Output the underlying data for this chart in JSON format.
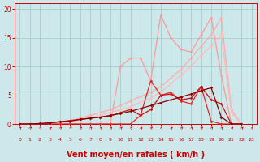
{
  "background_color": "#cce8ea",
  "grid_color": "#aacccc",
  "xlabel": "Vent moyen/en rafales ( km/h )",
  "xlabel_color": "#cc0000",
  "xlabel_fontsize": 7,
  "tick_color": "#cc0000",
  "x_ticks": [
    0,
    1,
    2,
    3,
    4,
    5,
    6,
    7,
    8,
    9,
    10,
    11,
    12,
    13,
    14,
    15,
    16,
    17,
    18,
    19,
    20,
    21,
    22,
    23
  ],
  "ylim": [
    0,
    21
  ],
  "xlim": [
    -0.5,
    23.5
  ],
  "y_ticks": [
    0,
    5,
    10,
    15,
    20
  ],
  "lines": [
    {
      "name": "light_pink_jagged",
      "x": [
        0,
        1,
        2,
        3,
        4,
        5,
        6,
        7,
        8,
        9,
        10,
        11,
        12,
        13,
        14,
        15,
        16,
        17,
        18,
        19,
        20,
        21,
        22
      ],
      "y": [
        0,
        0,
        0,
        0,
        0,
        0,
        0,
        0,
        0,
        0,
        10,
        11.5,
        11.5,
        7.5,
        19,
        15,
        13,
        12.5,
        15.5,
        18.5,
        8.5,
        0,
        0
      ],
      "color": "#ff9999",
      "lw": 0.9
    },
    {
      "name": "light_pink_diagonal1",
      "x": [
        0,
        1,
        2,
        3,
        4,
        5,
        6,
        7,
        8,
        9,
        10,
        11,
        12,
        13,
        14,
        15,
        16,
        17,
        18,
        19,
        20,
        21,
        22
      ],
      "y": [
        0,
        0,
        0,
        0,
        0.3,
        0.6,
        1.0,
        1.5,
        2.0,
        2.5,
        3.2,
        4.0,
        4.8,
        5.5,
        6.5,
        8.0,
        9.5,
        11.5,
        13.5,
        15.5,
        18.5,
        2.5,
        0
      ],
      "color": "#ffaaaa",
      "lw": 0.9
    },
    {
      "name": "light_pink_diagonal2",
      "x": [
        0,
        1,
        2,
        3,
        4,
        5,
        6,
        7,
        8,
        9,
        10,
        11,
        12,
        13,
        14,
        15,
        16,
        17,
        18,
        19,
        20,
        21,
        22
      ],
      "y": [
        0,
        0,
        0,
        0,
        0.2,
        0.4,
        0.7,
        1.1,
        1.5,
        2.0,
        2.5,
        3.0,
        3.8,
        4.5,
        5.5,
        7.0,
        8.5,
        10.0,
        12.0,
        13.5,
        15.5,
        2.0,
        0
      ],
      "color": "#ffbbbb",
      "lw": 0.9
    },
    {
      "name": "dark_red_jagged",
      "x": [
        0,
        1,
        2,
        3,
        4,
        5,
        6,
        7,
        8,
        9,
        10,
        11,
        12,
        13,
        14,
        15,
        16,
        17,
        18,
        19,
        20,
        21,
        22
      ],
      "y": [
        0,
        0,
        0,
        0,
        0,
        0,
        0,
        0,
        0,
        0,
        0,
        0,
        1.5,
        7.5,
        5.0,
        5.5,
        4.0,
        3.5,
        6.5,
        0.5,
        0,
        0,
        0
      ],
      "color": "#ee2222",
      "lw": 0.9
    },
    {
      "name": "medium_red_irregular",
      "x": [
        0,
        1,
        2,
        3,
        4,
        5,
        6,
        7,
        8,
        9,
        10,
        11,
        12,
        13,
        14,
        15,
        16,
        17,
        18,
        19,
        20,
        21,
        22
      ],
      "y": [
        0,
        0,
        0,
        0.2,
        0.4,
        0.6,
        0.8,
        1.0,
        1.2,
        1.4,
        2.0,
        2.5,
        1.5,
        2.5,
        5.0,
        5.2,
        4.2,
        4.5,
        6.5,
        4.2,
        3.5,
        0,
        0
      ],
      "color": "#cc1111",
      "lw": 0.9
    },
    {
      "name": "dark_red_trend",
      "x": [
        0,
        1,
        2,
        3,
        4,
        5,
        6,
        7,
        8,
        9,
        10,
        11,
        12,
        13,
        14,
        15,
        16,
        17,
        18,
        19,
        20,
        21,
        22
      ],
      "y": [
        0,
        0,
        0.1,
        0.2,
        0.4,
        0.5,
        0.8,
        1.0,
        1.2,
        1.5,
        1.8,
        2.2,
        2.7,
        3.2,
        3.7,
        4.2,
        4.7,
        5.2,
        5.8,
        6.3,
        1.2,
        0,
        0
      ],
      "color": "#880000",
      "lw": 0.9
    }
  ],
  "marker_style": "D",
  "marker_size": 1.8,
  "arrows": {
    "color": "#cc0000",
    "lw": 0.5
  }
}
